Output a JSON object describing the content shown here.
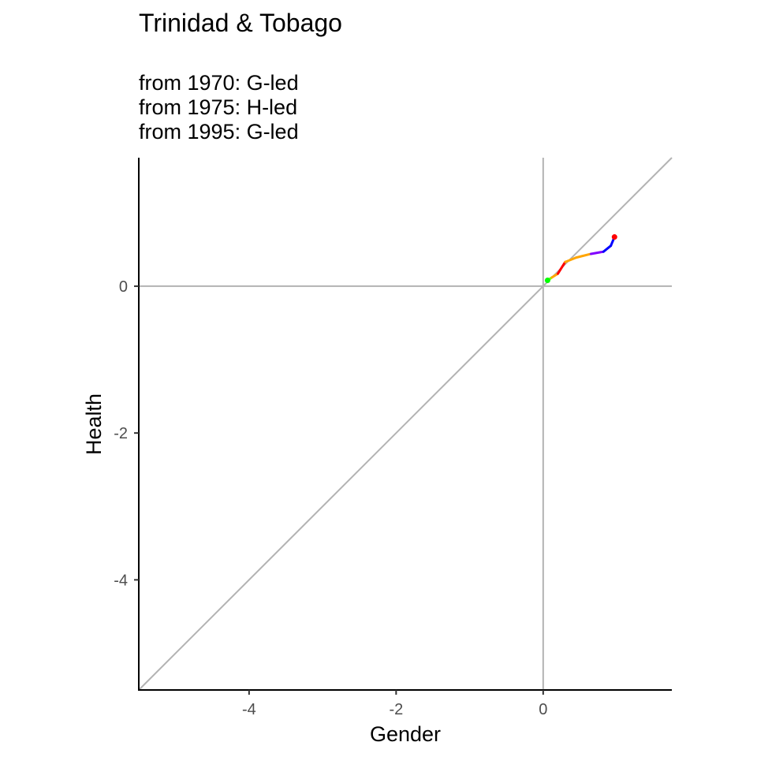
{
  "chart_data": {
    "type": "line",
    "title": "Trinidad & Tobago",
    "subtitle_lines": [
      "from 1970:  G-led",
      "from 1975:  H-led",
      "from 1995:  G-led"
    ],
    "xlabel": "Gender",
    "ylabel": "Health",
    "xlim": [
      -5.5,
      1.75
    ],
    "ylim": [
      -5.5,
      1.75
    ],
    "x_ticks": [
      -4,
      -2,
      0
    ],
    "y_ticks": [
      -4,
      -2,
      0
    ],
    "x_tick_labels": [
      "-4",
      "-2",
      "0"
    ],
    "y_tick_labels": [
      "-4",
      "-2",
      "0"
    ],
    "reference_lines": {
      "x_zero": true,
      "y_zero": true,
      "diagonal_identity": true,
      "color": "#b3b3b3"
    },
    "grid": false,
    "legend": "none",
    "series": [
      {
        "values": [
          {
            "x": 0.06,
            "y": 0.08,
            "color": "#00ff00"
          },
          {
            "x": 0.12,
            "y": 0.12,
            "color": "#80ff00"
          },
          {
            "x": 0.2,
            "y": 0.17,
            "color": "#ffa500"
          },
          {
            "x": 0.3,
            "y": 0.33,
            "color": "#ff0000"
          },
          {
            "x": 0.45,
            "y": 0.39,
            "color": "#ffa500"
          },
          {
            "x": 0.65,
            "y": 0.44,
            "color": "#ffa500"
          },
          {
            "x": 0.82,
            "y": 0.47,
            "color": "#8000ff"
          },
          {
            "x": 0.92,
            "y": 0.55,
            "color": "#0000ff"
          },
          {
            "x": 0.97,
            "y": 0.67,
            "color": "#0000ff"
          }
        ],
        "start_marker_color": "#00ff00",
        "end_marker_color": "#ff0000"
      }
    ]
  }
}
